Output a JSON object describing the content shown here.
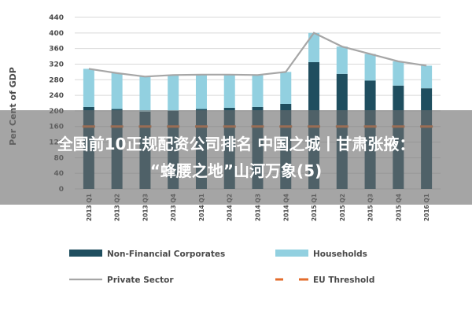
{
  "chart_data": {
    "type": "bar",
    "stacked": true,
    "categories": [
      "2013 Q1",
      "2013 Q2",
      "2013 Q3",
      "2013 Q4",
      "2014 Q1",
      "2014 Q2",
      "2014 Q3",
      "2014 Q4",
      "2015 Q1",
      "2015 Q2",
      "2015 Q3",
      "2015 Q4",
      "2016 Q1"
    ],
    "series": [
      {
        "name": "Non-Financial Corporates",
        "kind": "bar",
        "color": "#1f4e5f",
        "values": [
          210,
          205,
          198,
          200,
          205,
          208,
          210,
          218,
          325,
          295,
          278,
          265,
          258
        ]
      },
      {
        "name": "Households",
        "kind": "bar",
        "color": "#92d0e0",
        "values": [
          98,
          92,
          90,
          92,
          88,
          85,
          82,
          82,
          75,
          70,
          68,
          62,
          58
        ]
      },
      {
        "name": "Private Sector",
        "kind": "line",
        "color": "#a6a6a6",
        "values": [
          308,
          297,
          288,
          292,
          293,
          293,
          292,
          300,
          400,
          365,
          346,
          327,
          316
        ]
      },
      {
        "name": "EU Threshold",
        "kind": "dashed",
        "color": "#e36c2c",
        "values": [
          160,
          160,
          160,
          160,
          160,
          160,
          160,
          160,
          160,
          160,
          160,
          160,
          160
        ]
      }
    ],
    "ylabel": "Per Cent of GDP",
    "ylim": [
      0,
      440
    ],
    "yticks": [
      0,
      40,
      80,
      120,
      160,
      200,
      240,
      280,
      320,
      360,
      400,
      440
    ],
    "grid": true,
    "legend": "bottom"
  },
  "overlay": {
    "line1": "全国前10正规配资公司排名 中国之城丨甘肃张掖：",
    "line2": "“蜂腰之地”山河万象(5)"
  }
}
